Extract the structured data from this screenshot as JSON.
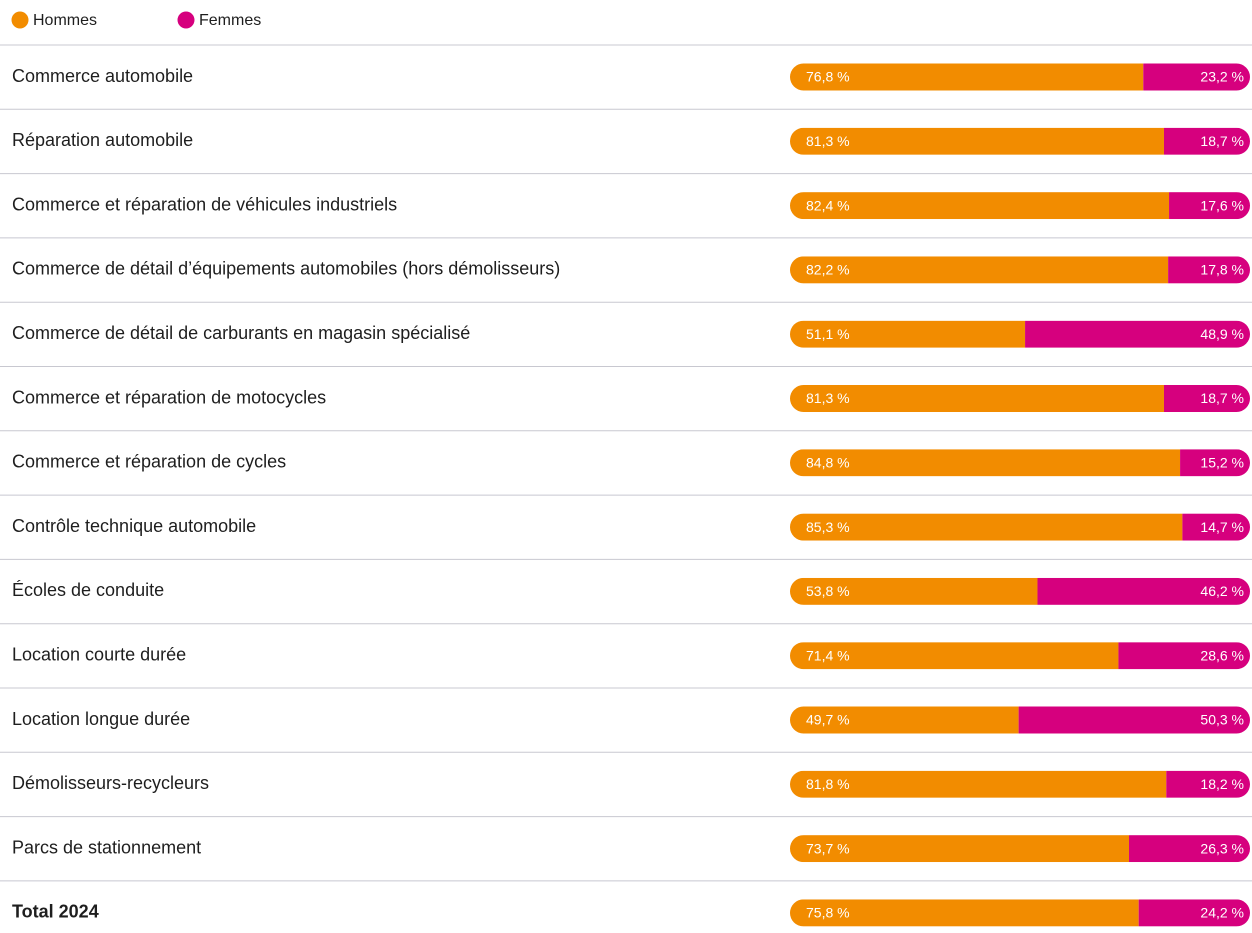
{
  "chart_data": {
    "type": "bar",
    "orientation": "horizontal",
    "stacked": true,
    "categories": [
      "Commerce automobile",
      "Réparation automobile",
      "Commerce et réparation de véhicules industriels",
      "Commerce de détail d’équipements automobiles (hors démolisseurs)",
      "Commerce de détail de carburants en magasin spécialisé",
      "Commerce et réparation de motocycles",
      "Commerce et réparation de cycles",
      "Contrôle technique automobile",
      "Écoles de conduite",
      "Location courte durée",
      "Location longue durée",
      "Démolisseurs-recycleurs",
      "Parcs de stationnement",
      "Total 2024"
    ],
    "xlim": [
      0,
      100
    ],
    "legend": "top-left",
    "series": [
      {
        "name": "Hommes",
        "color": "#f28c00",
        "values": [
          76.8,
          81.3,
          82.4,
          82.2,
          51.1,
          81.3,
          84.8,
          85.3,
          53.8,
          71.4,
          49.7,
          81.8,
          73.7,
          75.8
        ],
        "value_labels": [
          "76,8 %",
          "81,3 %",
          "82,4 %",
          "82,2 %",
          "51,1 %",
          "81,3 %",
          "84,8 %",
          "85,3 %",
          "53,8 %",
          "71,4 %",
          "49,7 %",
          "81,8 %",
          "73,7 %",
          "75,8 %"
        ]
      },
      {
        "name": "Femmes",
        "color": "#d6007e",
        "values": [
          23.2,
          18.7,
          17.6,
          17.8,
          48.9,
          18.7,
          15.2,
          14.7,
          46.2,
          28.6,
          50.3,
          18.2,
          26.3,
          24.2
        ],
        "value_labels": [
          "23,2 %",
          "18,7 %",
          "17,6 %",
          "17,8 %",
          "48,9 %",
          "18,7 %",
          "15,2 %",
          "14,7 %",
          "46,2 %",
          "28,6 %",
          "50,3 %",
          "18,2 %",
          "26,3 %",
          "24,2 %"
        ]
      }
    ]
  }
}
